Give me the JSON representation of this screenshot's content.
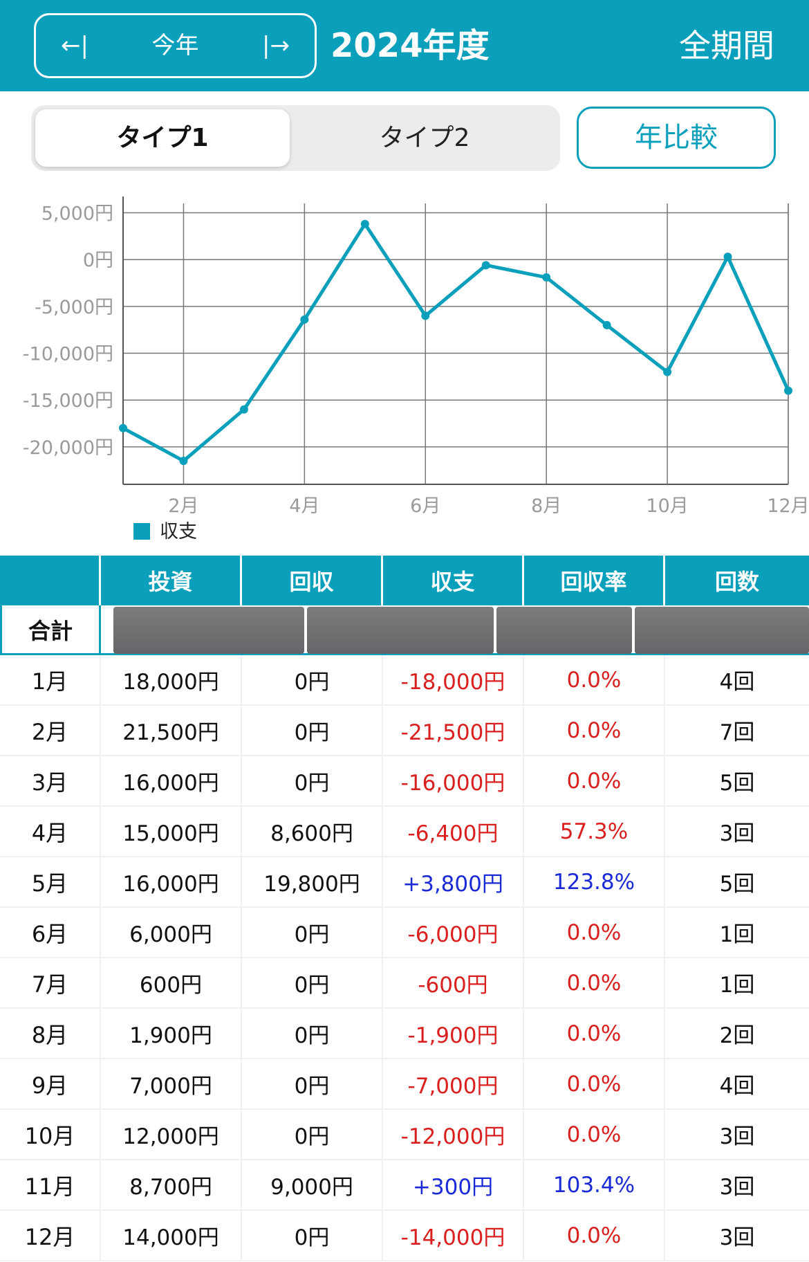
{
  "header": {
    "prev_icon": "←|",
    "current_period": "今年",
    "next_icon": "|→",
    "year_title": "2024年度",
    "all_period": "全期間",
    "color": "#0a9fba"
  },
  "tabs": {
    "type1": "タイプ1",
    "type2": "タイプ2",
    "compare": "年比較"
  },
  "chart_data": {
    "type": "line",
    "legend": [
      "収支"
    ],
    "legend_position": "bottom-left",
    "grid": true,
    "x": [
      "1月",
      "2月",
      "3月",
      "4月",
      "5月",
      "6月",
      "7月",
      "8月",
      "9月",
      "10月",
      "11月",
      "12月"
    ],
    "x_tick_labels": [
      "2月",
      "4月",
      "6月",
      "8月",
      "10月",
      "12月"
    ],
    "y_tick_labels": [
      "5,000円",
      "0円",
      "-5,000円",
      "-10,000円",
      "-15,000円",
      "-20,000円"
    ],
    "ylim": [
      -24000,
      6000
    ],
    "series": [
      {
        "name": "収支",
        "color": "#0a9fba",
        "values": [
          -18000,
          -21500,
          -16000,
          -6400,
          3800,
          -6000,
          -600,
          -1900,
          -7000,
          -12000,
          300,
          -14000
        ]
      }
    ]
  },
  "table": {
    "headers": [
      "",
      "投資",
      "回収",
      "収支",
      "回収率",
      "回数"
    ],
    "total_label": "合計",
    "rows": [
      {
        "month": "1月",
        "invest": "18,000円",
        "recover": "0円",
        "balance": "-18,000円",
        "rate": "0.0%",
        "count": "4回",
        "sign": "neg"
      },
      {
        "month": "2月",
        "invest": "21,500円",
        "recover": "0円",
        "balance": "-21,500円",
        "rate": "0.0%",
        "count": "7回",
        "sign": "neg"
      },
      {
        "month": "3月",
        "invest": "16,000円",
        "recover": "0円",
        "balance": "-16,000円",
        "rate": "0.0%",
        "count": "5回",
        "sign": "neg"
      },
      {
        "month": "4月",
        "invest": "15,000円",
        "recover": "8,600円",
        "balance": "-6,400円",
        "rate": "57.3%",
        "count": "3回",
        "sign": "neg"
      },
      {
        "month": "5月",
        "invest": "16,000円",
        "recover": "19,800円",
        "balance": "+3,800円",
        "rate": "123.8%",
        "count": "5回",
        "sign": "pos"
      },
      {
        "month": "6月",
        "invest": "6,000円",
        "recover": "0円",
        "balance": "-6,000円",
        "rate": "0.0%",
        "count": "1回",
        "sign": "neg"
      },
      {
        "month": "7月",
        "invest": "600円",
        "recover": "0円",
        "balance": "-600円",
        "rate": "0.0%",
        "count": "1回",
        "sign": "neg"
      },
      {
        "month": "8月",
        "invest": "1,900円",
        "recover": "0円",
        "balance": "-1,900円",
        "rate": "0.0%",
        "count": "2回",
        "sign": "neg"
      },
      {
        "month": "9月",
        "invest": "7,000円",
        "recover": "0円",
        "balance": "-7,000円",
        "rate": "0.0%",
        "count": "4回",
        "sign": "neg"
      },
      {
        "month": "10月",
        "invest": "12,000円",
        "recover": "0円",
        "balance": "-12,000円",
        "rate": "0.0%",
        "count": "3回",
        "sign": "neg"
      },
      {
        "month": "11月",
        "invest": "8,700円",
        "recover": "9,000円",
        "balance": "+300円",
        "rate": "103.4%",
        "count": "3回",
        "sign": "pos"
      },
      {
        "month": "12月",
        "invest": "14,000円",
        "recover": "0円",
        "balance": "-14,000円",
        "rate": "0.0%",
        "count": "3回",
        "sign": "neg"
      }
    ]
  }
}
